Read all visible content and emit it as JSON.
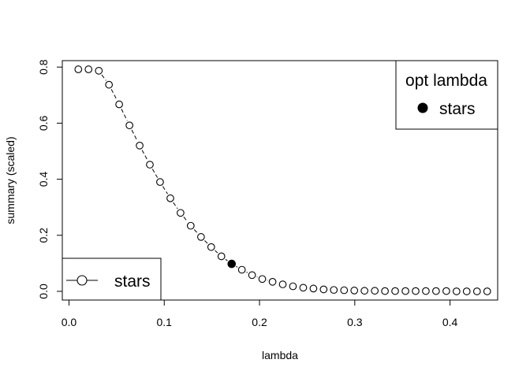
{
  "chart_data": {
    "type": "scatter",
    "xlabel": "lambda",
    "ylabel": "summary (scaled)",
    "xlim": [
      -0.007,
      0.45
    ],
    "ylim": [
      -0.031,
      0.823
    ],
    "xticks": [
      0.0,
      0.1,
      0.2,
      0.3,
      0.4
    ],
    "xtick_labels": [
      "0.0",
      "0.1",
      "0.2",
      "0.3",
      "0.4"
    ],
    "yticks": [
      0.0,
      0.2,
      0.4,
      0.6,
      0.8
    ],
    "ytick_labels": [
      "0.0",
      "0.2",
      "0.4",
      "0.6",
      "0.8"
    ],
    "grid": false,
    "series": [
      {
        "name": "stars",
        "marker": "open-circle",
        "line": "dashed",
        "x": [
          0.0098,
          0.0205,
          0.0313,
          0.042,
          0.0527,
          0.0635,
          0.0742,
          0.0849,
          0.0956,
          0.1064,
          0.1171,
          0.1278,
          0.1386,
          0.1493,
          0.16,
          0.1708,
          0.1815,
          0.1922,
          0.2029,
          0.2137,
          0.2244,
          0.2351,
          0.2459,
          0.2566,
          0.2673,
          0.278,
          0.2888,
          0.2995,
          0.3102,
          0.321,
          0.3317,
          0.3424,
          0.3532,
          0.3639,
          0.3746,
          0.3853,
          0.3961,
          0.4068,
          0.4175,
          0.4283,
          0.439
        ],
        "y": [
          0.792,
          0.792,
          0.787,
          0.737,
          0.667,
          0.592,
          0.52,
          0.452,
          0.39,
          0.332,
          0.28,
          0.234,
          0.194,
          0.158,
          0.125,
          0.098,
          0.077,
          0.058,
          0.044,
          0.034,
          0.025,
          0.018,
          0.013,
          0.01,
          0.007,
          0.005,
          0.004,
          0.003,
          0.002,
          0.002,
          0.001,
          0.001,
          0.001,
          0.001,
          0.001,
          0.001,
          0.001,
          0.0,
          0.0,
          0.0,
          0.0
        ]
      }
    ],
    "optimal": {
      "name": "stars",
      "x": 0.1708,
      "y": 0.098,
      "marker": "filled-circle"
    },
    "legends": [
      {
        "placement": "bottom-left",
        "entries": [
          {
            "label": "stars",
            "symbol": "line-open-circle"
          }
        ]
      },
      {
        "placement": "top-right",
        "title": "opt lambda",
        "entries": [
          {
            "label": "stars",
            "symbol": "filled-circle"
          }
        ]
      }
    ]
  }
}
